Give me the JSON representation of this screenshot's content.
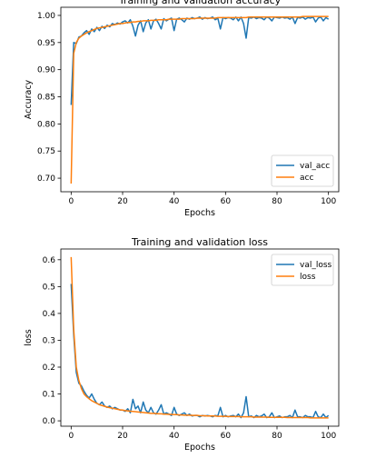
{
  "chart_data": [
    {
      "type": "line",
      "title": "Training and validation accuracy",
      "xlabel": "Epochs",
      "ylabel": "Accuracy",
      "xlim": [
        -4,
        104
      ],
      "ylim": [
        0.675,
        1.015
      ],
      "xticks": [
        0,
        20,
        40,
        60,
        80,
        100
      ],
      "xtick_labels": [
        "0",
        "20",
        "40",
        "60",
        "80",
        "100"
      ],
      "yticks": [
        0.7,
        0.75,
        0.8,
        0.85,
        0.9,
        0.95,
        1.0
      ],
      "ytick_labels": [
        "0.70",
        "0.75",
        "0.80",
        "0.85",
        "0.90",
        "0.95",
        "1.00"
      ],
      "legend_position": "lower-right",
      "grid": false,
      "series": [
        {
          "name": "val_acc",
          "color": "#1f77b4",
          "x": [
            0,
            1,
            2,
            3,
            4,
            5,
            6,
            7,
            8,
            9,
            10,
            11,
            12,
            13,
            14,
            15,
            16,
            17,
            18,
            19,
            20,
            21,
            22,
            23,
            24,
            25,
            26,
            27,
            28,
            29,
            30,
            31,
            32,
            33,
            34,
            35,
            36,
            37,
            38,
            39,
            40,
            41,
            42,
            43,
            44,
            45,
            46,
            47,
            48,
            49,
            50,
            51,
            52,
            53,
            54,
            55,
            56,
            57,
            58,
            59,
            60,
            61,
            62,
            63,
            64,
            65,
            66,
            67,
            68,
            69,
            70,
            71,
            72,
            73,
            74,
            75,
            76,
            77,
            78,
            79,
            80,
            81,
            82,
            83,
            84,
            85,
            86,
            87,
            88,
            89,
            90,
            91,
            92,
            93,
            94,
            95,
            96,
            97,
            98,
            99,
            100
          ],
          "y": [
            0.835,
            0.95,
            0.948,
            0.96,
            0.962,
            0.968,
            0.972,
            0.965,
            0.975,
            0.97,
            0.978,
            0.972,
            0.98,
            0.976,
            0.982,
            0.979,
            0.985,
            0.983,
            0.986,
            0.984,
            0.988,
            0.99,
            0.986,
            0.992,
            0.98,
            0.962,
            0.982,
            0.99,
            0.97,
            0.986,
            0.992,
            0.975,
            0.99,
            0.993,
            0.985,
            0.975,
            0.994,
            0.99,
            0.993,
            0.995,
            0.972,
            0.993,
            0.995,
            0.992,
            0.988,
            0.995,
            0.993,
            0.996,
            0.994,
            0.995,
            0.997,
            0.993,
            0.996,
            0.994,
            0.995,
            0.997,
            0.992,
            0.995,
            0.975,
            0.996,
            0.994,
            0.996,
            0.995,
            0.992,
            0.997,
            0.99,
            0.997,
            0.985,
            0.958,
            0.996,
            0.995,
            0.997,
            0.994,
            0.996,
            0.995,
            0.992,
            0.997,
            0.995,
            0.99,
            0.997,
            0.996,
            0.995,
            0.997,
            0.995,
            0.996,
            0.993,
            0.997,
            0.985,
            0.996,
            0.995,
            0.997,
            0.993,
            0.996,
            0.995,
            0.997,
            0.988,
            0.995,
            0.997,
            0.99,
            0.996,
            0.993
          ]
        },
        {
          "name": "acc",
          "color": "#ff7f0e",
          "x": [
            0,
            1,
            2,
            3,
            4,
            5,
            6,
            7,
            8,
            9,
            10,
            11,
            12,
            13,
            14,
            15,
            16,
            17,
            18,
            19,
            20,
            21,
            22,
            23,
            24,
            25,
            26,
            27,
            28,
            29,
            30,
            31,
            32,
            33,
            34,
            35,
            36,
            37,
            38,
            39,
            40,
            41,
            42,
            43,
            44,
            45,
            46,
            47,
            48,
            49,
            50,
            51,
            52,
            53,
            54,
            55,
            56,
            57,
            58,
            59,
            60,
            61,
            62,
            63,
            64,
            65,
            66,
            67,
            68,
            69,
            70,
            71,
            72,
            73,
            74,
            75,
            76,
            77,
            78,
            79,
            80,
            81,
            82,
            83,
            84,
            85,
            86,
            87,
            88,
            89,
            90,
            91,
            92,
            93,
            94,
            95,
            96,
            97,
            98,
            99,
            100
          ],
          "y": [
            0.69,
            0.93,
            0.95,
            0.958,
            0.962,
            0.965,
            0.968,
            0.97,
            0.972,
            0.974,
            0.976,
            0.977,
            0.978,
            0.979,
            0.98,
            0.981,
            0.982,
            0.983,
            0.984,
            0.985,
            0.985,
            0.986,
            0.987,
            0.987,
            0.988,
            0.988,
            0.989,
            0.989,
            0.99,
            0.99,
            0.99,
            0.991,
            0.991,
            0.991,
            0.992,
            0.992,
            0.992,
            0.992,
            0.993,
            0.993,
            0.993,
            0.993,
            0.993,
            0.994,
            0.994,
            0.994,
            0.994,
            0.994,
            0.994,
            0.995,
            0.995,
            0.995,
            0.995,
            0.995,
            0.995,
            0.995,
            0.995,
            0.996,
            0.996,
            0.996,
            0.996,
            0.996,
            0.996,
            0.996,
            0.996,
            0.996,
            0.996,
            0.996,
            0.996,
            0.997,
            0.997,
            0.997,
            0.997,
            0.997,
            0.997,
            0.997,
            0.997,
            0.997,
            0.997,
            0.997,
            0.997,
            0.997,
            0.997,
            0.997,
            0.997,
            0.997,
            0.997,
            0.997,
            0.997,
            0.997,
            0.998,
            0.998,
            0.998,
            0.998,
            0.998,
            0.998,
            0.998,
            0.998,
            0.998,
            0.998,
            0.998
          ]
        }
      ]
    },
    {
      "type": "line",
      "title": "Training and validation loss",
      "xlabel": "Epochs",
      "ylabel": "loss",
      "xlim": [
        -4,
        104
      ],
      "ylim": [
        -0.02,
        0.64
      ],
      "xticks": [
        0,
        20,
        40,
        60,
        80,
        100
      ],
      "xtick_labels": [
        "0",
        "20",
        "40",
        "60",
        "80",
        "100"
      ],
      "yticks": [
        0.0,
        0.1,
        0.2,
        0.3,
        0.4,
        0.5,
        0.6
      ],
      "ytick_labels": [
        "0.0",
        "0.1",
        "0.2",
        "0.3",
        "0.4",
        "0.5",
        "0.6"
      ],
      "legend_position": "upper-right",
      "grid": false,
      "series": [
        {
          "name": "val_loss",
          "color": "#1f77b4",
          "x": [
            0,
            1,
            2,
            3,
            4,
            5,
            6,
            7,
            8,
            9,
            10,
            11,
            12,
            13,
            14,
            15,
            16,
            17,
            18,
            19,
            20,
            21,
            22,
            23,
            24,
            25,
            26,
            27,
            28,
            29,
            30,
            31,
            32,
            33,
            34,
            35,
            36,
            37,
            38,
            39,
            40,
            41,
            42,
            43,
            44,
            45,
            46,
            47,
            48,
            49,
            50,
            51,
            52,
            53,
            54,
            55,
            56,
            57,
            58,
            59,
            60,
            61,
            62,
            63,
            64,
            65,
            66,
            67,
            68,
            69,
            70,
            71,
            72,
            73,
            74,
            75,
            76,
            77,
            78,
            79,
            80,
            81,
            82,
            83,
            84,
            85,
            86,
            87,
            88,
            89,
            90,
            91,
            92,
            93,
            94,
            95,
            96,
            97,
            98,
            99,
            100
          ],
          "y": [
            0.51,
            0.32,
            0.18,
            0.14,
            0.13,
            0.11,
            0.095,
            0.085,
            0.1,
            0.08,
            0.065,
            0.06,
            0.07,
            0.055,
            0.05,
            0.055,
            0.045,
            0.05,
            0.045,
            0.04,
            0.04,
            0.035,
            0.045,
            0.03,
            0.08,
            0.045,
            0.055,
            0.03,
            0.07,
            0.04,
            0.03,
            0.05,
            0.03,
            0.025,
            0.04,
            0.06,
            0.025,
            0.03,
            0.025,
            0.02,
            0.05,
            0.025,
            0.02,
            0.025,
            0.03,
            0.02,
            0.025,
            0.018,
            0.02,
            0.02,
            0.015,
            0.02,
            0.018,
            0.02,
            0.018,
            0.015,
            0.02,
            0.018,
            0.05,
            0.015,
            0.02,
            0.015,
            0.018,
            0.02,
            0.015,
            0.025,
            0.012,
            0.03,
            0.09,
            0.015,
            0.018,
            0.012,
            0.02,
            0.015,
            0.018,
            0.025,
            0.012,
            0.015,
            0.03,
            0.012,
            0.015,
            0.018,
            0.012,
            0.015,
            0.015,
            0.02,
            0.012,
            0.04,
            0.015,
            0.015,
            0.012,
            0.02,
            0.015,
            0.015,
            0.012,
            0.035,
            0.015,
            0.012,
            0.025,
            0.012,
            0.02
          ]
        },
        {
          "name": "loss",
          "color": "#ff7f0e",
          "x": [
            0,
            1,
            2,
            3,
            4,
            5,
            6,
            7,
            8,
            9,
            10,
            11,
            12,
            13,
            14,
            15,
            16,
            17,
            18,
            19,
            20,
            21,
            22,
            23,
            24,
            25,
            26,
            27,
            28,
            29,
            30,
            31,
            32,
            33,
            34,
            35,
            36,
            37,
            38,
            39,
            40,
            41,
            42,
            43,
            44,
            45,
            46,
            47,
            48,
            49,
            50,
            51,
            52,
            53,
            54,
            55,
            56,
            57,
            58,
            59,
            60,
            61,
            62,
            63,
            64,
            65,
            66,
            67,
            68,
            69,
            70,
            71,
            72,
            73,
            74,
            75,
            76,
            77,
            78,
            79,
            80,
            81,
            82,
            83,
            84,
            85,
            86,
            87,
            88,
            89,
            90,
            91,
            92,
            93,
            94,
            95,
            96,
            97,
            98,
            99,
            100
          ],
          "y": [
            0.61,
            0.34,
            0.2,
            0.15,
            0.12,
            0.1,
            0.09,
            0.082,
            0.075,
            0.07,
            0.065,
            0.06,
            0.057,
            0.054,
            0.051,
            0.049,
            0.047,
            0.045,
            0.043,
            0.041,
            0.04,
            0.038,
            0.037,
            0.036,
            0.035,
            0.034,
            0.033,
            0.032,
            0.031,
            0.03,
            0.029,
            0.028,
            0.028,
            0.027,
            0.026,
            0.026,
            0.025,
            0.025,
            0.024,
            0.024,
            0.023,
            0.023,
            0.022,
            0.022,
            0.021,
            0.021,
            0.021,
            0.02,
            0.02,
            0.02,
            0.019,
            0.019,
            0.019,
            0.018,
            0.018,
            0.018,
            0.018,
            0.017,
            0.017,
            0.017,
            0.017,
            0.016,
            0.016,
            0.016,
            0.016,
            0.016,
            0.015,
            0.015,
            0.015,
            0.015,
            0.015,
            0.014,
            0.014,
            0.014,
            0.014,
            0.014,
            0.014,
            0.013,
            0.013,
            0.013,
            0.013,
            0.013,
            0.013,
            0.013,
            0.012,
            0.012,
            0.012,
            0.012,
            0.012,
            0.012,
            0.012,
            0.012,
            0.012,
            0.011,
            0.011,
            0.011,
            0.011,
            0.011,
            0.011,
            0.011,
            0.011
          ]
        }
      ]
    }
  ]
}
